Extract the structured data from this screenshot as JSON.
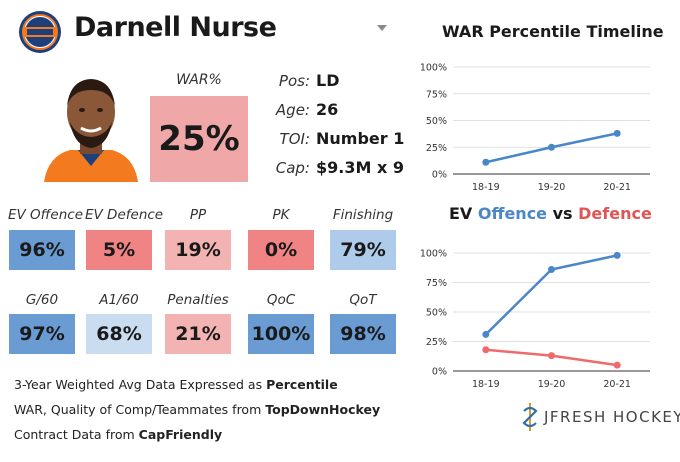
{
  "player": {
    "name": "Darnell Nurse"
  },
  "war": {
    "label": "WAR%",
    "value": "25%",
    "color": "#f0a7a7"
  },
  "info": [
    {
      "label": "Pos:",
      "value": "LD"
    },
    {
      "label": "Age:",
      "value": "26"
    },
    {
      "label": "TOI:",
      "value": "Number 1"
    },
    {
      "label": "Cap:",
      "value": "$9.3M x 9"
    }
  ],
  "stats_row1": [
    {
      "label": "EV Offence",
      "value": "96%",
      "color": "#6a9bd3"
    },
    {
      "label": "EV Defence",
      "value": "5%",
      "color": "#f08484"
    },
    {
      "label": "PP",
      "value": "19%",
      "color": "#f3b3b3"
    },
    {
      "label": "PK",
      "value": "0%",
      "color": "#f08484"
    },
    {
      "label": "Finishing",
      "value": "79%",
      "color": "#aecbea"
    }
  ],
  "stats_row2": [
    {
      "label": "G/60",
      "value": "97%",
      "color": "#6a9bd3"
    },
    {
      "label": "A1/60",
      "value": "68%",
      "color": "#c9dcf0"
    },
    {
      "label": "Penalties",
      "value": "21%",
      "color": "#f3b3b3"
    },
    {
      "label": "QoC",
      "value": "100%",
      "color": "#6a9bd3"
    },
    {
      "label": "QoT",
      "value": "98%",
      "color": "#6a9bd3"
    }
  ],
  "footer": {
    "line1_prefix": "3-Year Weighted Avg Data Expressed as ",
    "line1_bold": "Percentile",
    "line2_prefix": "WAR, Quality of Comp/Teammates from ",
    "line2_bold": "TopDownHockey",
    "line3_prefix": "Contract Data from ",
    "line3_bold": "CapFriendly"
  },
  "brand": {
    "text": "JFRESH HOCKEY"
  },
  "chart_data": [
    {
      "type": "line",
      "title": "WAR Percentile Timeline",
      "categories": [
        "18-19",
        "19-20",
        "20-21"
      ],
      "series": [
        {
          "values": [
            11,
            25,
            38
          ],
          "color": "#4a86c8"
        }
      ],
      "yticks": [
        "0%",
        "25%",
        "50%",
        "75%",
        "100%"
      ],
      "ylim": [
        0,
        100
      ],
      "grid": true
    },
    {
      "type": "line",
      "title_parts": [
        {
          "text": "EV ",
          "color": "#1a1a1a"
        },
        {
          "text": "Offence",
          "color": "#4a86c8"
        },
        {
          "text": " vs ",
          "color": "#1a1a1a"
        },
        {
          "text": "Defence",
          "color": "#e05656"
        }
      ],
      "categories": [
        "18-19",
        "19-20",
        "20-21"
      ],
      "series": [
        {
          "values": [
            31,
            86,
            98
          ],
          "color": "#4a86c8"
        },
        {
          "values": [
            18,
            13,
            5
          ],
          "color": "#ef6b6b"
        }
      ],
      "yticks": [
        "0%",
        "25%",
        "50%",
        "75%",
        "100%"
      ],
      "ylim": [
        0,
        100
      ],
      "grid": true
    }
  ]
}
